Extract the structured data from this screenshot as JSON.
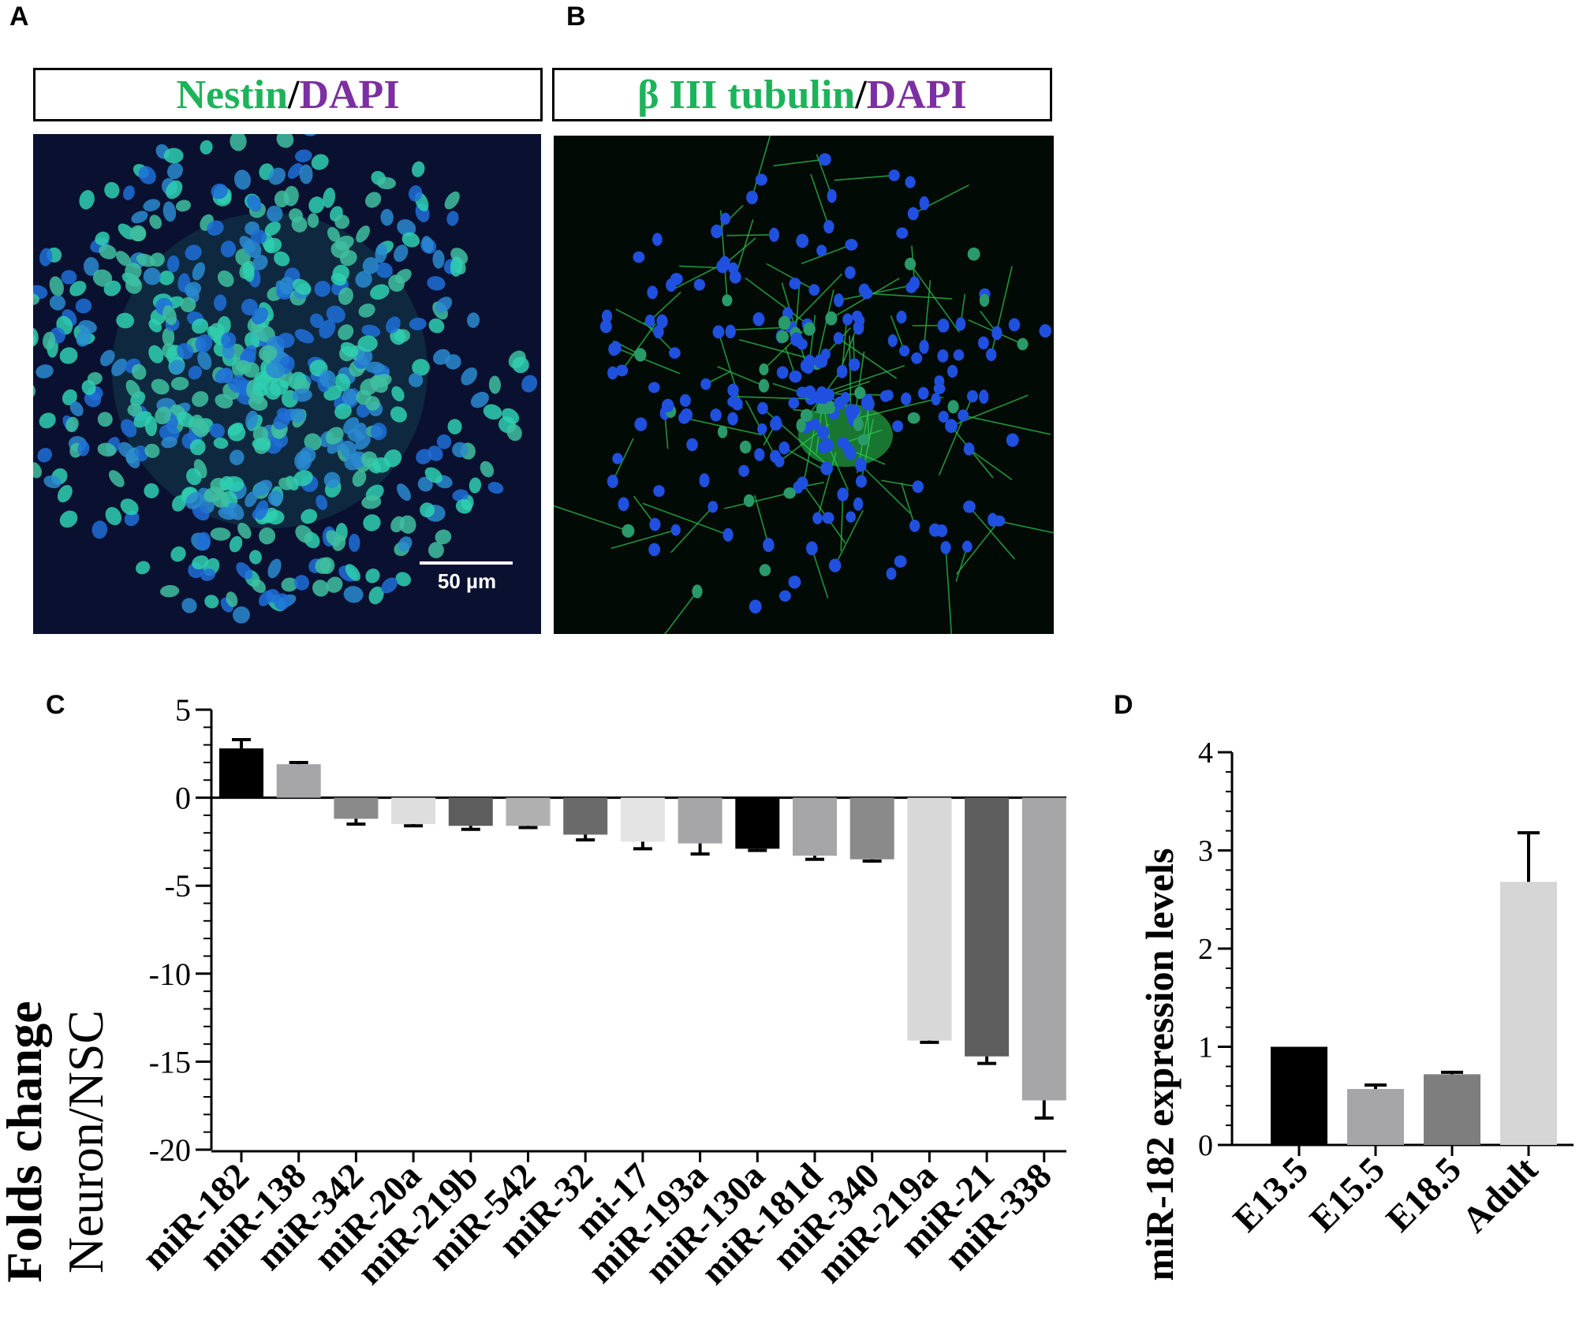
{
  "panels": {
    "a": {
      "letter": "A",
      "stain_main": "Nestin",
      "slash": "/",
      "stain_counter": "DAPI",
      "scale_bar": "50 µm"
    },
    "b": {
      "letter": "B",
      "stain_main": "β III tubulin",
      "slash": "/",
      "stain_counter": "DAPI"
    },
    "c": {
      "letter": "C"
    },
    "d": {
      "letter": "D"
    }
  },
  "colors": {
    "green_label": "#1db35a",
    "purple_label": "#7b2fa0",
    "nucleus_blue": "#1f55d8",
    "nestin_cyan": "#2fd8b0",
    "tubulin_green": "#22c24a"
  },
  "chart_data": [
    {
      "panel": "C",
      "type": "bar",
      "ylabel_line1": "Folds change",
      "ylabel_line2": "Neuron/NSC",
      "ylim": [
        -20,
        5
      ],
      "yticks": [
        "5",
        "0",
        "-5",
        "-10",
        "-15",
        "-20"
      ],
      "categories": [
        "miR-182",
        "miR-138",
        "miR-342",
        "miR-20a",
        "miR-219b",
        "miR-542",
        "miR-32",
        "mi-17",
        "miR-193a",
        "miR-130a",
        "miR-181d",
        "miR-340",
        "miR-219a",
        "miR-21",
        "miR-338"
      ],
      "values": [
        2.8,
        1.9,
        -1.2,
        -1.5,
        -1.6,
        -1.6,
        -2.1,
        -2.5,
        -2.6,
        -2.9,
        -3.3,
        -3.5,
        -13.8,
        -14.7,
        -17.2
      ],
      "errors": [
        0.5,
        0.1,
        0.3,
        0.1,
        0.2,
        0.1,
        0.3,
        0.4,
        0.6,
        0.1,
        0.2,
        0.1,
        0.1,
        0.4,
        1.0
      ],
      "bar_colors": [
        "#000000",
        "#a6a6a8",
        "#8a8a8a",
        "#dedede",
        "#5e5e5e",
        "#b0b0b0",
        "#6a6a6a",
        "#e4e4e4",
        "#a6a6a8",
        "#000000",
        "#a6a6a8",
        "#8a8a8a",
        "#d8d8d8",
        "#5e5e5e",
        "#a6a6a8"
      ]
    },
    {
      "panel": "D",
      "type": "bar",
      "ylabel": "miR-182 expression levels",
      "ylim": [
        0,
        4
      ],
      "yticks": [
        "0",
        "1",
        "2",
        "3",
        "4"
      ],
      "categories": [
        "E13.5",
        "E15.5",
        "E18.5",
        "Adult"
      ],
      "values": [
        1.0,
        0.57,
        0.72,
        2.68
      ],
      "errors": [
        0.0,
        0.04,
        0.02,
        0.5
      ],
      "bar_colors": [
        "#000000",
        "#a6a6a8",
        "#7e7e7e",
        "#d6d6d6"
      ]
    }
  ]
}
